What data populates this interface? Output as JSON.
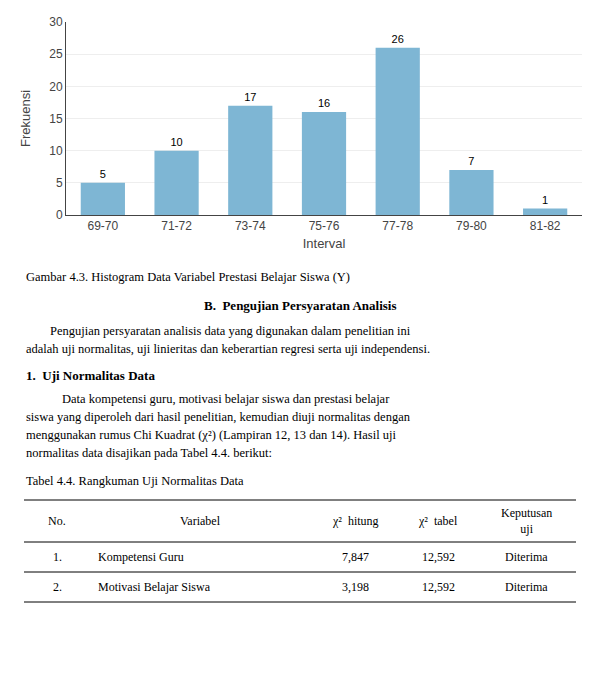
{
  "chart_data": {
    "type": "bar",
    "categories": [
      "69-70",
      "71-72",
      "73-74",
      "75-76",
      "77-78",
      "79-80",
      "81-82"
    ],
    "values": [
      5,
      10,
      17,
      16,
      26,
      7,
      1
    ],
    "color": "#7eb6d4",
    "xlabel": "Interval",
    "ylabel": "Frekuensi",
    "ylim": [
      0,
      30
    ],
    "yticks": [
      0,
      5,
      10,
      15,
      20,
      25,
      30
    ],
    "grid": true,
    "data_labels": true,
    "annotations": [
      "Gambar 4.3. Histogram Data Variabel Prestasi Belajar Siswa (Y)",
      "B.  Pengujian Persyaratan Analisis",
      "Pengujian persyaratan analisis data yang digunakan dalam penelitian ini",
      "adalah uji normalitas, uji linieritas dan keberartian regresi serta uji independensi.",
      "1.  Uji Normalitas Data",
      "Data kompetensi guru, motivasi belajar siswa dan prestasi belajar",
      "siswa yang diperoleh dari hasil penelitian, kemudian diuji normalitas dengan",
      "menggunakan rumus Chi Kuadrat (χ²) (Lampiran 12, 13 dan 14). Hasil uji",
      "normalitas data disajikan pada Tabel 4.4. berikut:",
      "Tabel 4.4. Rangkuman Uji Normalitas Data"
    ],
    "table": {
      "columns": [
        "No.",
        "Variabel",
        "χ²  hitung",
        "χ²  tabel",
        "Keputusan\nuji"
      ],
      "rows": [
        [
          "1.",
          "Kompetensi Guru",
          "7,847",
          "12,592",
          "Diterima"
        ],
        [
          "2.",
          "Motivasi Belajar Siswa",
          "3,198",
          "12,592",
          "Diterima"
        ]
      ]
    }
  }
}
